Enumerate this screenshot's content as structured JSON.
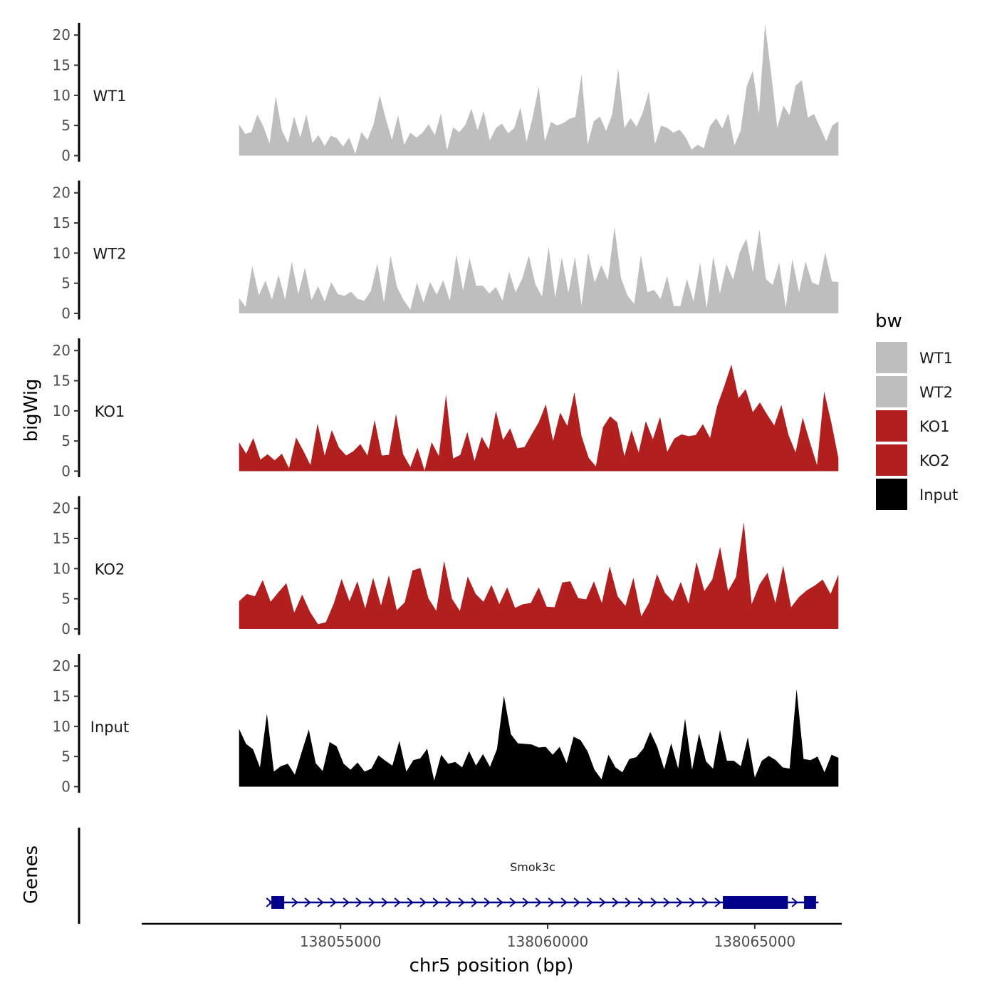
{
  "chart_data": {
    "type": "area",
    "title": "",
    "xlabel": "chr5 position (bp)",
    "ylabel": "bigWig",
    "genes_label": "Genes",
    "xlim": [
      138050200,
      138067100
    ],
    "ylim": [
      0,
      22
    ],
    "x_ticks": [
      {
        "value": 138055000,
        "label": "138055000"
      },
      {
        "value": 138060000,
        "label": "138060000"
      },
      {
        "value": 138065000,
        "label": "138065000"
      }
    ],
    "y_ticks": [
      {
        "value": 0,
        "label": "0"
      },
      {
        "value": 5,
        "label": "5"
      },
      {
        "value": 10,
        "label": "10"
      },
      {
        "value": 15,
        "label": "15"
      },
      {
        "value": 20,
        "label": "20"
      }
    ],
    "data_x_start": 138052550,
    "data_x_end": 138067020,
    "legend": {
      "title": "bw",
      "entries": [
        {
          "label": "WT1",
          "color": "#bebebe"
        },
        {
          "label": "WT2",
          "color": "#bebebe"
        },
        {
          "label": "KO1",
          "color": "#b21f1f"
        },
        {
          "label": "KO2",
          "color": "#b21f1f"
        },
        {
          "label": "Input",
          "color": "#000000"
        }
      ]
    },
    "series": [
      {
        "name": "WT1",
        "color": "#bebebe",
        "values": [
          5.2,
          3.6,
          3.9,
          6.8,
          4.8,
          2.0,
          9.9,
          4.2,
          2.1,
          6.5,
          3.0,
          6.8,
          2.1,
          3.4,
          1.6,
          3.3,
          2.9,
          1.5,
          3.0,
          0.3,
          3.9,
          2.6,
          5.2,
          10.0,
          6.1,
          2.6,
          6.7,
          1.8,
          3.8,
          3.0,
          3.8,
          5.2,
          3.4,
          7.0,
          0.9,
          4.7,
          3.9,
          5.1,
          7.8,
          4.2,
          7.4,
          2.5,
          4.6,
          5.3,
          3.7,
          4.6,
          8.0,
          2.3,
          6.3,
          11.5,
          2.4,
          5.6,
          5.0,
          5.4,
          6.1,
          6.4,
          13.5,
          1.8,
          5.7,
          6.5,
          4.1,
          6.8,
          14.4,
          4.6,
          6.2,
          4.8,
          7.1,
          10.6,
          1.9,
          5.0,
          4.6,
          3.8,
          4.3,
          3.1,
          1.0,
          1.8,
          1.2,
          4.9,
          6.2,
          4.5,
          7.0,
          1.7,
          4.1,
          11.5,
          14.1,
          6.9,
          21.8,
          13.6,
          4.6,
          8.3,
          6.7,
          11.6,
          12.5,
          6.3,
          6.9,
          4.7,
          2.4,
          5.0,
          5.7
        ]
      },
      {
        "name": "WT2",
        "color": "#bebebe",
        "values": [
          2.5,
          1.1,
          7.9,
          3.0,
          5.4,
          2.3,
          6.4,
          2.3,
          8.6,
          3.2,
          7.6,
          2.2,
          4.5,
          2.0,
          5.2,
          3.2,
          2.9,
          3.6,
          2.4,
          2.1,
          3.7,
          8.3,
          1.8,
          9.6,
          4.3,
          2.2,
          0.6,
          5.1,
          1.8,
          5.2,
          3.1,
          5.5,
          2.1,
          9.8,
          3.8,
          9.2,
          4.6,
          4.6,
          3.3,
          4.4,
          2.1,
          6.9,
          3.5,
          5.8,
          9.6,
          4.8,
          2.8,
          11.1,
          2.6,
          9.3,
          3.4,
          9.4,
          1.3,
          10.1,
          5.1,
          8.0,
          5.5,
          14.4,
          5.8,
          2.9,
          1.6,
          9.7,
          3.5,
          3.9,
          2.4,
          6.2,
          1.2,
          1.2,
          5.7,
          2.0,
          8.4,
          0.8,
          9.5,
          3.3,
          8.2,
          5.6,
          10.1,
          12.4,
          6.8,
          13.9,
          5.7,
          4.7,
          8.4,
          0.9,
          9.0,
          3.5,
          8.6,
          5.1,
          4.7,
          10.1,
          5.3,
          5.2
        ]
      },
      {
        "name": "KO1",
        "color": "#b21f1f",
        "values": [
          4.8,
          2.9,
          5.5,
          1.9,
          2.8,
          1.8,
          2.9,
          0.5,
          5.6,
          3.4,
          1.0,
          7.9,
          2.6,
          6.8,
          3.9,
          2.6,
          3.3,
          4.5,
          2.6,
          8.5,
          2.6,
          2.7,
          9.5,
          2.8,
          0.7,
          3.9,
          0.1,
          4.8,
          2.5,
          12.7,
          2.1,
          2.7,
          6.5,
          1.7,
          5.7,
          3.6,
          10.0,
          5.2,
          7.1,
          3.8,
          4.0,
          6.1,
          8.1,
          11.1,
          5.0,
          9.7,
          7.5,
          13.1,
          5.8,
          2.2,
          0.8,
          7.3,
          9.1,
          8.1,
          2.5,
          6.8,
          3.1,
          8.3,
          5.3,
          9.0,
          3.2,
          5.4,
          6.1,
          5.8,
          6.0,
          7.8,
          5.5,
          10.8,
          14.1,
          17.7,
          12.1,
          13.6,
          9.8,
          11.4,
          9.4,
          7.6,
          11.0,
          6.0,
          3.1,
          8.9,
          4.8,
          1.0,
          13.2,
          8.1,
          2.2
        ]
      },
      {
        "name": "KO2",
        "color": "#b21f1f",
        "values": [
          4.6,
          5.8,
          5.4,
          8.1,
          4.5,
          6.1,
          7.6,
          2.7,
          5.7,
          2.8,
          0.8,
          1.1,
          4.2,
          8.3,
          4.6,
          7.9,
          3.4,
          8.5,
          3.9,
          8.9,
          3.1,
          4.4,
          9.7,
          10.1,
          5.1,
          3.0,
          11.3,
          5.0,
          3.0,
          8.7,
          5.8,
          4.5,
          7.3,
          4.1,
          6.9,
          3.5,
          4.1,
          4.3,
          6.9,
          3.7,
          3.6,
          7.7,
          7.9,
          5.1,
          4.9,
          7.9,
          4.3,
          10.4,
          5.4,
          3.8,
          8.5,
          2.1,
          4.4,
          9.1,
          6.0,
          4.6,
          7.8,
          4.2,
          11.1,
          6.3,
          8.2,
          13.6,
          6.3,
          8.6,
          17.7,
          4.1,
          7.4,
          9.3,
          4.3,
          10.5,
          3.6,
          5.3,
          6.4,
          7.2,
          8.2,
          5.8,
          9.0
        ]
      },
      {
        "name": "Input",
        "color": "#000000",
        "values": [
          9.6,
          7.1,
          6.2,
          3.2,
          12.1,
          2.5,
          3.4,
          3.8,
          2.0,
          5.8,
          9.5,
          3.9,
          2.6,
          7.4,
          6.7,
          3.8,
          2.8,
          4.0,
          2.5,
          3.0,
          5.2,
          4.3,
          3.5,
          7.6,
          2.5,
          4.4,
          4.7,
          6.3,
          1.0,
          5.3,
          3.8,
          4.1,
          3.2,
          5.9,
          3.5,
          5.4,
          3.3,
          6.2,
          15.1,
          8.7,
          7.2,
          7.1,
          7.0,
          6.5,
          6.6,
          5.3,
          6.6,
          3.9,
          8.3,
          7.7,
          5.9,
          2.8,
          1.2,
          5.3,
          3.2,
          2.4,
          4.6,
          4.9,
          6.3,
          9.1,
          6.6,
          2.9,
          7.2,
          3.0,
          11.3,
          2.8,
          8.8,
          4.2,
          3.0,
          9.4,
          4.3,
          4.3,
          3.4,
          8.2,
          1.5,
          4.3,
          5.1,
          4.4,
          3.2,
          3.0,
          16.2,
          4.6,
          4.4,
          5.0,
          2.4,
          5.3,
          4.8
        ]
      }
    ],
    "gene": {
      "name": "Smok3c",
      "strand": "+",
      "start": 138053280,
      "end": 138066540,
      "exons": [
        [
          138053330,
          138053640
        ],
        [
          138064230,
          138065800
        ],
        [
          138066190,
          138066480
        ]
      ],
      "color": "#00008b"
    }
  }
}
